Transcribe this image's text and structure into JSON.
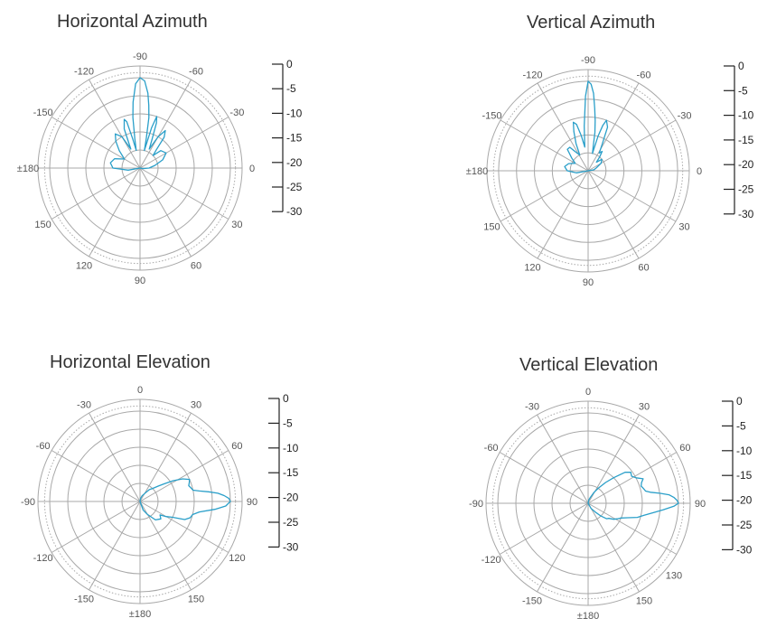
{
  "colors": {
    "grid": "#a8a8a8",
    "pattern": "#2a9fc9",
    "text": "#333333"
  },
  "chart_data": [
    {
      "type": "polar",
      "title": "Horizontal Azimuth",
      "grid_rings": 5,
      "outer_ring_db": 0,
      "inner_ring_db": -30,
      "angle_ticks": [
        {
          "deg": 0,
          "label": "0"
        },
        {
          "deg": 30,
          "label": "30"
        },
        {
          "deg": 60,
          "label": "60"
        },
        {
          "deg": 90,
          "label": "90"
        },
        {
          "deg": 120,
          "label": "120"
        },
        {
          "deg": 150,
          "label": "150"
        },
        {
          "deg": 180,
          "label": "±180"
        },
        {
          "deg": -150,
          "label": "-150"
        },
        {
          "deg": -120,
          "label": "-120"
        },
        {
          "deg": -90,
          "label": "-90"
        },
        {
          "deg": -60,
          "label": "-60"
        },
        {
          "deg": -30,
          "label": "-30"
        }
      ],
      "db_scale": [
        "0",
        "-5",
        "-10",
        "-15",
        "-20",
        "-25",
        "-30"
      ],
      "pattern": {
        "angle_deg": [
          -90,
          -87,
          -84,
          -82,
          -80,
          -78,
          -76,
          -74,
          -72,
          -70,
          -67,
          -64,
          -60,
          -56,
          -52,
          -48,
          -44,
          -40,
          -30,
          -20,
          -10,
          0,
          10,
          20,
          30,
          60,
          90,
          120,
          150,
          170,
          180,
          -170,
          -160,
          -150,
          -140,
          -132,
          -126,
          -120,
          -116,
          -112,
          -108,
          -106,
          -104,
          -102,
          -100,
          -98,
          -96,
          -93,
          -90
        ],
        "gain_db": [
          0,
          -1,
          -5,
          -9,
          -13,
          -20,
          -24,
          -16,
          -12,
          -14,
          -20,
          -23,
          -18,
          -15,
          -17,
          -22,
          -24,
          -21,
          -20,
          -22,
          -25,
          -27,
          -29,
          -30,
          -30,
          -30,
          -30,
          -30,
          -30,
          -26,
          -21,
          -20,
          -21,
          -24,
          -21,
          -18,
          -16,
          -18,
          -23,
          -16,
          -13,
          -14,
          -20,
          -24,
          -20,
          -13,
          -8,
          -2,
          0
        ]
      }
    },
    {
      "type": "polar",
      "title": "Vertical Azimuth",
      "grid_rings": 5,
      "outer_ring_db": 0,
      "inner_ring_db": -30,
      "angle_ticks": [
        {
          "deg": 0,
          "label": "0"
        },
        {
          "deg": 30,
          "label": "30"
        },
        {
          "deg": 60,
          "label": "60"
        },
        {
          "deg": 90,
          "label": "90"
        },
        {
          "deg": 120,
          "label": "120"
        },
        {
          "deg": 150,
          "label": "150"
        },
        {
          "deg": 180,
          "label": "±180"
        },
        {
          "deg": -150,
          "label": "-150"
        },
        {
          "deg": -120,
          "label": "-120"
        },
        {
          "deg": -90,
          "label": "-90"
        },
        {
          "deg": -60,
          "label": "-60"
        },
        {
          "deg": -30,
          "label": "-30"
        }
      ],
      "db_scale": [
        "0",
        "-5",
        "-10",
        "-15",
        "-20",
        "-25",
        "-30"
      ],
      "pattern": {
        "angle_deg": [
          -90,
          -88,
          -86,
          -84,
          -82,
          -80,
          -78,
          -76,
          -74,
          -72,
          -70,
          -66,
          -62,
          -58,
          -54,
          -50,
          -46,
          -40,
          -30,
          -20,
          -10,
          0,
          20,
          60,
          90,
          120,
          160,
          170,
          180,
          -170,
          -160,
          -150,
          -142,
          -134,
          -128,
          -122,
          -118,
          -114,
          -110,
          -107,
          -104,
          -101,
          -98,
          -95,
          -92,
          -90
        ],
        "gain_db": [
          0,
          -1,
          -4,
          -9,
          -13,
          -17,
          -22,
          -24,
          -18,
          -14,
          -12,
          -14,
          -20,
          -23,
          -22,
          -24,
          -26,
          -24,
          -25,
          -27,
          -28,
          -30,
          -30,
          -30,
          -30,
          -30,
          -30,
          -26,
          -23,
          -22,
          -23,
          -25,
          -23,
          -20,
          -20,
          -23,
          -24,
          -20,
          -16,
          -13,
          -14,
          -18,
          -22,
          -15,
          -5,
          0
        ]
      }
    },
    {
      "type": "polar",
      "title": "Horizontal Elevation",
      "grid_rings": 5,
      "outer_ring_db": 0,
      "inner_ring_db": -30,
      "angle_ticks": [
        {
          "deg": 0,
          "label": "0"
        },
        {
          "deg": 30,
          "label": "30"
        },
        {
          "deg": 60,
          "label": "60"
        },
        {
          "deg": 90,
          "label": "90"
        },
        {
          "deg": 120,
          "label": "120"
        },
        {
          "deg": 150,
          "label": "150"
        },
        {
          "deg": 180,
          "label": "±180"
        },
        {
          "deg": -150,
          "label": "-150"
        },
        {
          "deg": -120,
          "label": "-120"
        },
        {
          "deg": -90,
          "label": "-90"
        },
        {
          "deg": -60,
          "label": "-60"
        },
        {
          "deg": -30,
          "label": "-30"
        }
      ],
      "db_scale": [
        "0",
        "-5",
        "-10",
        "-15",
        "-20",
        "-25",
        "-30"
      ],
      "pattern": {
        "angle_deg": [
          90,
          88,
          86,
          84,
          82,
          80,
          78,
          75,
          72,
          69,
          66,
          62,
          58,
          54,
          50,
          44,
          38,
          30,
          20,
          10,
          0,
          -30,
          -90,
          -150,
          180,
          160,
          150,
          140,
          130,
          124,
          120,
          116,
          112,
          108,
          104,
          100,
          96,
          93,
          90
        ],
        "gain_db": [
          0,
          -0.5,
          -2,
          -4,
          -7,
          -10,
          -12,
          -12.5,
          -13,
          -12.5,
          -12,
          -14,
          -17,
          -20,
          -22,
          -24,
          -25,
          -27,
          -28,
          -29,
          -30,
          -30,
          -30,
          -30,
          -30,
          -27,
          -25,
          -22,
          -21,
          -22,
          -20,
          -18,
          -14,
          -12.5,
          -12,
          -10,
          -5,
          -1.5,
          0
        ]
      }
    },
    {
      "type": "polar",
      "title": "Vertical Elevation",
      "grid_rings": 5,
      "outer_ring_db": 0,
      "inner_ring_db": -30,
      "angle_ticks": [
        {
          "deg": 0,
          "label": "0"
        },
        {
          "deg": 30,
          "label": "30"
        },
        {
          "deg": 60,
          "label": "60"
        },
        {
          "deg": 90,
          "label": "90"
        },
        {
          "deg": 130,
          "label": "130"
        },
        {
          "deg": 150,
          "label": "150"
        },
        {
          "deg": 180,
          "label": "±180"
        },
        {
          "deg": -150,
          "label": "-150"
        },
        {
          "deg": -120,
          "label": "-120"
        },
        {
          "deg": -90,
          "label": "-90"
        },
        {
          "deg": -60,
          "label": "-60"
        },
        {
          "deg": -30,
          "label": "-30"
        }
      ],
      "db_scale": [
        "0",
        "-5",
        "-10",
        "-15",
        "-20",
        "-25",
        "-30"
      ],
      "pattern": {
        "angle_deg": [
          90,
          88,
          86,
          84,
          82,
          80,
          78,
          75,
          72,
          69,
          66,
          62,
          58,
          54,
          50,
          45,
          40,
          34,
          28,
          20,
          10,
          0,
          -30,
          -90,
          -150,
          180,
          150,
          140,
          135,
          130,
          126,
          122,
          118,
          114,
          110,
          106,
          102,
          98,
          95,
          92,
          90
        ],
        "gain_db": [
          0,
          -0.5,
          -1.5,
          -3,
          -6,
          -9,
          -10.5,
          -11,
          -11.5,
          -11,
          -10,
          -12,
          -13,
          -12.5,
          -14,
          -18,
          -21,
          -24,
          -26,
          -28,
          -29,
          -30,
          -30,
          -30,
          -30,
          -30,
          -28,
          -26,
          -24,
          -22,
          -21.5,
          -20,
          -19,
          -18,
          -16,
          -13,
          -11,
          -8,
          -5,
          -1.5,
          0
        ]
      }
    }
  ]
}
